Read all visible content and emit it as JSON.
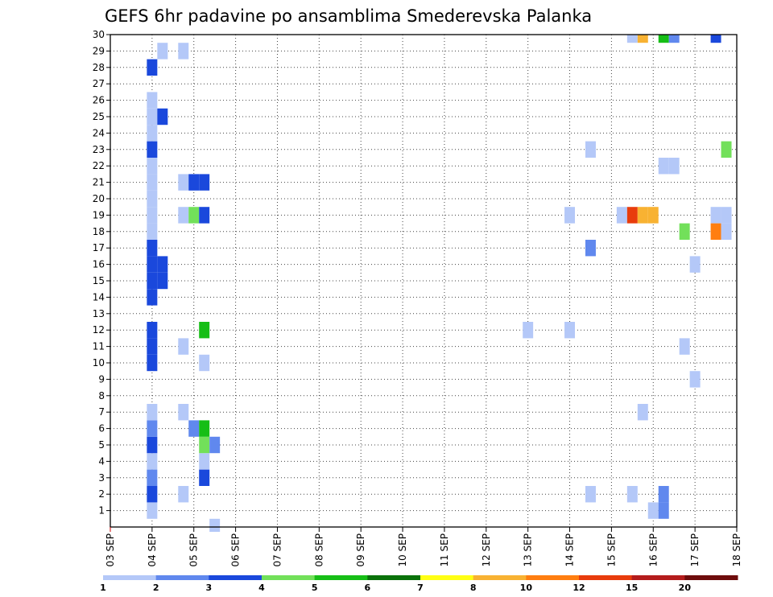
{
  "chart_data": {
    "type": "heatmap",
    "title": "GEFS 6hr padavine po ansamblima Smederevska Palanka",
    "xlabel": "",
    "ylabel": "",
    "x_tick_labels": [
      "03 SEP",
      "04 SEP",
      "05 SEP",
      "06 SEP",
      "07 SEP",
      "08 SEP",
      "09 SEP",
      "10 SEP",
      "11 SEP",
      "12 SEP",
      "13 SEP",
      "14 SEP",
      "15 SEP",
      "16 SEP",
      "17 SEP",
      "18 SEP"
    ],
    "y_tick_labels": [
      "1",
      "2",
      "3",
      "4",
      "5",
      "6",
      "7",
      "8",
      "9",
      "10",
      "11",
      "12",
      "13",
      "14",
      "15",
      "16",
      "17",
      "18",
      "19",
      "20",
      "21",
      "22",
      "23",
      "24",
      "25",
      "26",
      "27",
      "28",
      "29",
      "30"
    ],
    "xlim_days": [
      0,
      15
    ],
    "ylim_members": [
      0,
      30
    ],
    "grid": true,
    "legend": {
      "placement": "bottom",
      "labels": [
        "1",
        "2",
        "3",
        "4",
        "5",
        "6",
        "7",
        "8",
        "10",
        "12",
        "15",
        "20"
      ],
      "colors": [
        "#b4c8f8",
        "#6088ee",
        "#1a48dc",
        "#72e05a",
        "#16be16",
        "#0a720a",
        "#ffff14",
        "#f8b232",
        "#ff7e10",
        "#e83c0c",
        "#b41c1c",
        "#6e0c0c"
      ]
    },
    "cells": [
      {
        "day": 1.0,
        "member": 1,
        "c": 0
      },
      {
        "day": 1.0,
        "member": 2,
        "c": 2
      },
      {
        "day": 1.0,
        "member": 3,
        "c": 1
      },
      {
        "day": 1.0,
        "member": 4,
        "c": 0
      },
      {
        "day": 1.0,
        "member": 5,
        "c": 2
      },
      {
        "day": 1.0,
        "member": 6,
        "c": 1
      },
      {
        "day": 1.0,
        "member": 7,
        "c": 0
      },
      {
        "day": 1.0,
        "member": 10,
        "c": 2
      },
      {
        "day": 1.0,
        "member": 11,
        "c": 2
      },
      {
        "day": 1.0,
        "member": 12,
        "c": 2
      },
      {
        "day": 1.0,
        "member": 14,
        "c": 2
      },
      {
        "day": 1.0,
        "member": 15,
        "c": 2
      },
      {
        "day": 1.25,
        "member": 15,
        "c": 2
      },
      {
        "day": 1.0,
        "member": 16,
        "c": 2
      },
      {
        "day": 1.25,
        "member": 16,
        "c": 2
      },
      {
        "day": 1.0,
        "member": 17,
        "c": 2
      },
      {
        "day": 1.0,
        "member": 18,
        "c": 0
      },
      {
        "day": 1.0,
        "member": 19,
        "c": 0
      },
      {
        "day": 1.0,
        "member": 20,
        "c": 0
      },
      {
        "day": 1.0,
        "member": 21,
        "c": 0
      },
      {
        "day": 1.0,
        "member": 22,
        "c": 0
      },
      {
        "day": 1.0,
        "member": 23,
        "c": 2
      },
      {
        "day": 1.0,
        "member": 24,
        "c": 0
      },
      {
        "day": 1.0,
        "member": 25,
        "c": 0
      },
      {
        "day": 1.25,
        "member": 25,
        "c": 2
      },
      {
        "day": 1.0,
        "member": 26,
        "c": 0
      },
      {
        "day": 1.0,
        "member": 28,
        "c": 2
      },
      {
        "day": 1.25,
        "member": 29,
        "c": 0
      },
      {
        "day": 1.75,
        "member": 2,
        "c": 0
      },
      {
        "day": 1.75,
        "member": 7,
        "c": 0
      },
      {
        "day": 1.75,
        "member": 11,
        "c": 0
      },
      {
        "day": 1.75,
        "member": 19,
        "c": 0
      },
      {
        "day": 1.75,
        "member": 21,
        "c": 0
      },
      {
        "day": 1.75,
        "member": 29,
        "c": 0
      },
      {
        "day": 2.0,
        "member": 6,
        "c": 1
      },
      {
        "day": 2.0,
        "member": 19,
        "c": 3
      },
      {
        "day": 2.0,
        "member": 21,
        "c": 2
      },
      {
        "day": 2.25,
        "member": 3,
        "c": 2
      },
      {
        "day": 2.25,
        "member": 4,
        "c": 0
      },
      {
        "day": 2.25,
        "member": 5,
        "c": 3
      },
      {
        "day": 2.25,
        "member": 6,
        "c": 4
      },
      {
        "day": 2.25,
        "member": 10,
        "c": 0
      },
      {
        "day": 2.25,
        "member": 12,
        "c": 4
      },
      {
        "day": 2.25,
        "member": 19,
        "c": 2
      },
      {
        "day": 2.25,
        "member": 21,
        "c": 2
      },
      {
        "day": 2.5,
        "member": 5,
        "c": 1
      },
      {
        "day": 2.5,
        "member": 0,
        "c": 0
      },
      {
        "day": 10.0,
        "member": 12,
        "c": 0
      },
      {
        "day": 11.0,
        "member": 12,
        "c": 0
      },
      {
        "day": 11.0,
        "member": 19,
        "c": 0
      },
      {
        "day": 11.5,
        "member": 2,
        "c": 0
      },
      {
        "day": 11.5,
        "member": 17,
        "c": 1
      },
      {
        "day": 11.5,
        "member": 23,
        "c": 0
      },
      {
        "day": 12.25,
        "member": 19,
        "c": 0
      },
      {
        "day": 12.5,
        "member": 2,
        "c": 0
      },
      {
        "day": 12.5,
        "member": 30,
        "c": 0
      },
      {
        "day": 12.5,
        "member": 19,
        "c": 9
      },
      {
        "day": 12.75,
        "member": 19,
        "c": 7
      },
      {
        "day": 12.75,
        "member": 30,
        "c": 7
      },
      {
        "day": 12.75,
        "member": 7,
        "c": 0
      },
      {
        "day": 13.0,
        "member": 1,
        "c": 0
      },
      {
        "day": 13.0,
        "member": 19,
        "c": 7
      },
      {
        "day": 13.25,
        "member": 1,
        "c": 1
      },
      {
        "day": 13.25,
        "member": 2,
        "c": 1
      },
      {
        "day": 13.25,
        "member": 30,
        "c": 4
      },
      {
        "day": 13.25,
        "member": 22,
        "c": 0
      },
      {
        "day": 13.5,
        "member": 22,
        "c": 0
      },
      {
        "day": 13.5,
        "member": 30,
        "c": 1
      },
      {
        "day": 13.75,
        "member": 11,
        "c": 0
      },
      {
        "day": 13.75,
        "member": 18,
        "c": 3
      },
      {
        "day": 14.0,
        "member": 9,
        "c": 0
      },
      {
        "day": 14.0,
        "member": 16,
        "c": 0
      },
      {
        "day": 14.5,
        "member": 19,
        "c": 0
      },
      {
        "day": 14.75,
        "member": 19,
        "c": 0
      },
      {
        "day": 14.5,
        "member": 18,
        "c": 8
      },
      {
        "day": 14.75,
        "member": 18,
        "c": 0
      },
      {
        "day": 14.5,
        "member": 30,
        "c": 2
      },
      {
        "day": 14.75,
        "member": 23,
        "c": 3
      }
    ]
  }
}
